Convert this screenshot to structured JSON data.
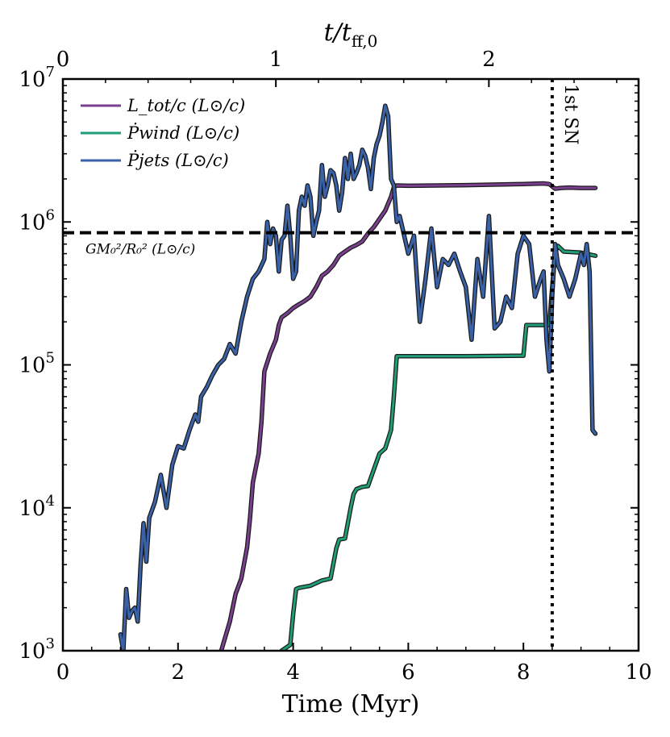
{
  "chart_data": {
    "type": "line",
    "yscale": "log",
    "xlabel": "Time (Myr)",
    "ylabel": "",
    "top_xlabel": "t/t_ff,0",
    "xlim": [
      0,
      10
    ],
    "ylim": [
      1000,
      10000000
    ],
    "x_ticks": [
      0,
      2,
      4,
      6,
      8,
      10
    ],
    "x_tick_labels": [
      "0",
      "2",
      "4",
      "6",
      "8",
      "10"
    ],
    "y_ticks": [
      1000,
      10000,
      100000,
      1000000,
      10000000
    ],
    "y_tick_labels": [
      {
        "base": "10",
        "exp": "3"
      },
      {
        "base": "10",
        "exp": "4"
      },
      {
        "base": "10",
        "exp": "5"
      },
      {
        "base": "10",
        "exp": "6"
      },
      {
        "base": "10",
        "exp": "7"
      }
    ],
    "top_ticks_myr": [
      0,
      3.7,
      7.4
    ],
    "top_tick_labels": [
      "0",
      "1",
      "2"
    ],
    "hline": {
      "value": 840000,
      "label": "GM₀²/R₀² (L⊙/c)",
      "style": "dashed",
      "color": "#000000"
    },
    "vline": {
      "value": 8.5,
      "label": "1st SN",
      "style": "dotted",
      "color": "#000000"
    },
    "legend": {
      "position": "top-left"
    },
    "series": [
      {
        "name": "L_tot/c (L⊙/c)",
        "legend_label": "L_tot/c (L⊙/c)",
        "color": "#7b3f8f",
        "x": [
          2.75,
          2.9,
          3.0,
          3.1,
          3.2,
          3.25,
          3.3,
          3.4,
          3.45,
          3.5,
          3.6,
          3.7,
          3.75,
          3.8,
          3.9,
          4.0,
          4.1,
          4.2,
          4.3,
          4.4,
          4.5,
          4.6,
          4.7,
          4.8,
          4.9,
          5.0,
          5.1,
          5.2,
          5.3,
          5.4,
          5.5,
          5.6,
          5.7,
          5.75,
          5.8,
          6.0,
          7.0,
          8.0,
          8.35,
          8.45,
          8.55,
          8.65,
          8.8,
          9.0,
          9.25
        ],
        "y": [
          1000,
          1600,
          2500,
          3200,
          5300,
          8500,
          15000,
          24000,
          40000,
          90000,
          120000,
          150000,
          190000,
          215000,
          230000,
          250000,
          265000,
          280000,
          300000,
          350000,
          420000,
          450000,
          500000,
          580000,
          620000,
          660000,
          690000,
          730000,
          830000,
          920000,
          1050000,
          1200000,
          1500000,
          1750000,
          1800000,
          1790000,
          1810000,
          1840000,
          1860000,
          1840000,
          1710000,
          1730000,
          1740000,
          1730000,
          1730000
        ]
      },
      {
        "name": "Ṗ_wind (L⊙/c)",
        "legend_label": "Ṗwind (L⊙/c)",
        "color": "#1f9e78",
        "x": [
          3.8,
          3.95,
          4.0,
          4.05,
          4.1,
          4.2,
          4.3,
          4.5,
          4.65,
          4.75,
          4.8,
          4.9,
          5.0,
          5.05,
          5.1,
          5.2,
          5.3,
          5.4,
          5.5,
          5.6,
          5.7,
          5.75,
          5.8,
          6.0,
          7.0,
          8.0,
          8.05,
          8.3,
          8.45,
          8.48,
          8.55,
          8.6,
          8.7,
          9.0,
          9.25
        ],
        "y": [
          1000,
          1100,
          1800,
          2700,
          2750,
          2800,
          2850,
          3100,
          3200,
          5200,
          6000,
          6100,
          10000,
          12500,
          13500,
          14000,
          14200,
          18500,
          24000,
          26000,
          35000,
          60000,
          115000,
          115000,
          115000,
          116000,
          190000,
          190000,
          190000,
          280000,
          610000,
          680000,
          620000,
          610000,
          580000
        ]
      },
      {
        "name": "Ṗ_jets (L⊙/c)",
        "legend_label": "Ṗjets (L⊙/c)",
        "color": "#3a62a8",
        "x": [
          1.0,
          1.05,
          1.1,
          1.15,
          1.2,
          1.25,
          1.3,
          1.35,
          1.4,
          1.45,
          1.5,
          1.6,
          1.7,
          1.8,
          1.9,
          2.0,
          2.1,
          2.2,
          2.3,
          2.35,
          2.4,
          2.5,
          2.6,
          2.7,
          2.8,
          2.9,
          3.0,
          3.1,
          3.2,
          3.3,
          3.4,
          3.5,
          3.55,
          3.6,
          3.65,
          3.7,
          3.75,
          3.8,
          3.85,
          3.9,
          3.95,
          4.0,
          4.05,
          4.1,
          4.15,
          4.2,
          4.25,
          4.3,
          4.35,
          4.4,
          4.45,
          4.5,
          4.55,
          4.6,
          4.65,
          4.7,
          4.75,
          4.8,
          4.85,
          4.9,
          4.95,
          5.0,
          5.05,
          5.1,
          5.15,
          5.2,
          5.25,
          5.3,
          5.35,
          5.4,
          5.45,
          5.5,
          5.55,
          5.6,
          5.65,
          5.7,
          5.75,
          5.8,
          5.85,
          5.9,
          6.0,
          6.1,
          6.2,
          6.3,
          6.4,
          6.5,
          6.6,
          6.7,
          6.8,
          6.9,
          7.0,
          7.1,
          7.2,
          7.3,
          7.4,
          7.5,
          7.6,
          7.7,
          7.8,
          7.9,
          8.0,
          8.1,
          8.2,
          8.3,
          8.35,
          8.4,
          8.45,
          8.5,
          8.55,
          8.6,
          8.7,
          8.8,
          8.9,
          9.0,
          9.05,
          9.1,
          9.15,
          9.2,
          9.25
        ],
        "y": [
          1300,
          1000,
          2700,
          1700,
          1900,
          2000,
          1600,
          4000,
          7800,
          4200,
          8500,
          11000,
          17000,
          10000,
          20000,
          27000,
          26000,
          35000,
          45000,
          40000,
          60000,
          70000,
          85000,
          100000,
          110000,
          140000,
          120000,
          200000,
          300000,
          400000,
          450000,
          550000,
          1000000,
          700000,
          900000,
          800000,
          450000,
          750000,
          800000,
          1300000,
          800000,
          400000,
          450000,
          1200000,
          1500000,
          1300000,
          1800000,
          1500000,
          800000,
          1000000,
          1200000,
          2500000,
          1500000,
          1800000,
          2300000,
          2200000,
          1800000,
          1200000,
          1600000,
          2800000,
          2000000,
          3000000,
          2000000,
          2200000,
          2500000,
          3200000,
          2900000,
          2400000,
          1700000,
          2800000,
          3500000,
          4000000,
          5000000,
          6500000,
          5500000,
          2000000,
          1800000,
          1000000,
          1100000,
          900000,
          600000,
          800000,
          200000,
          400000,
          900000,
          350000,
          550000,
          500000,
          600000,
          450000,
          350000,
          150000,
          550000,
          300000,
          1100000,
          180000,
          200000,
          300000,
          250000,
          600000,
          800000,
          700000,
          300000,
          400000,
          450000,
          150000,
          90000,
          300000,
          700000,
          500000,
          400000,
          300000,
          400000,
          600000,
          500000,
          700000,
          450000,
          35000,
          33000
        ]
      }
    ]
  }
}
